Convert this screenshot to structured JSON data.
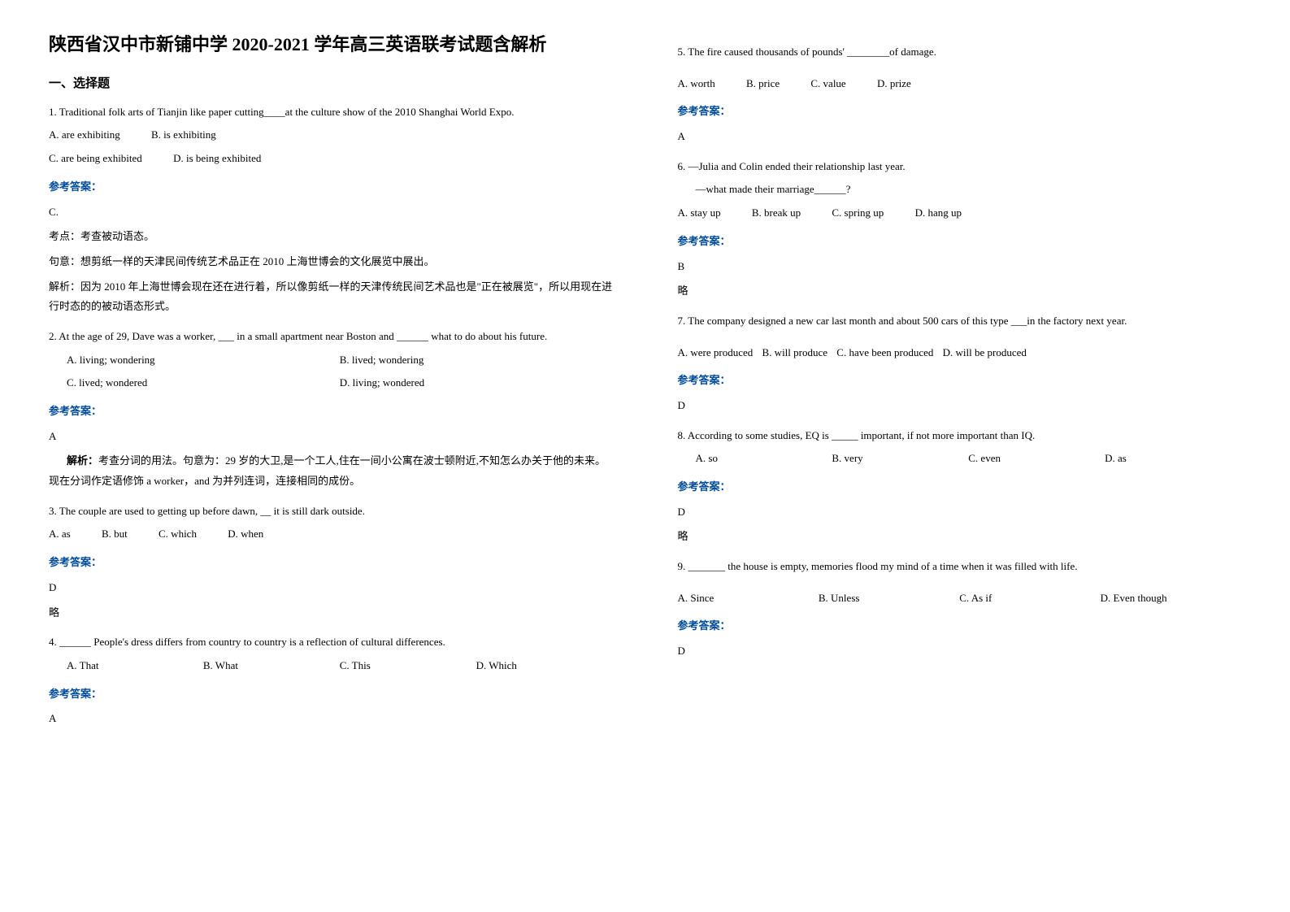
{
  "title": "陕西省汉中市新铺中学 2020-2021 学年高三英语联考试题含解析",
  "section1_header": "一、选择题",
  "answer_label": "参考答案：",
  "q1": {
    "text": "1. Traditional folk arts of Tianjin like paper cutting____at the culture show of the 2010 Shanghai World Expo.",
    "optA": "A. are exhibiting",
    "optB": "B. is exhibiting",
    "optC": "C. are being exhibited",
    "optD": "D. is being exhibited",
    "answer": "C.",
    "point_label": "考点：考查被动语态。",
    "meaning": "句意：想剪纸一样的天津民间传统艺术品正在 2010 上海世博会的文化展览中展出。",
    "analysis": "解析：因为 2010 年上海世博会现在还在进行着，所以像剪纸一样的天津传统民间艺术品也是\"正在被展览\"，所以用现在进行时态的的被动语态形式。"
  },
  "q2": {
    "text": "2. At the age of 29, Dave was a worker, ___ in a small apartment near Boston and ______ what to do about his future.",
    "optA": "A. living; wondering",
    "optB": "B. lived; wondering",
    "optC": "C. lived; wondered",
    "optD": "D. living; wondered",
    "answer": "A",
    "analysis_label": "解析：",
    "analysis": "考查分词的用法。句意为：29 岁的大卫,是一个工人,住在一间小公寓在波士顿附近,不知怎么办关于他的未来。现在分词作定语修饰 a worker，and 为并列连词，连接相同的成份。"
  },
  "q3": {
    "text": "3. The couple are used to getting up before dawn, __ it is still dark outside.",
    "optA": "A. as",
    "optB": "B. but",
    "optC": "C. which",
    "optD": "D. when",
    "answer": "D",
    "note": "略"
  },
  "q4": {
    "text": "4. ______ People's dress differs from country to country is a reflection of cultural differences.",
    "optA": "A. That",
    "optB": "B. What",
    "optC": "C. This",
    "optD": "D. Which",
    "answer": "A"
  },
  "q5": {
    "text": "5. The fire caused thousands of pounds' ________of damage.",
    "optA": "A. worth",
    "optB": "B. price",
    "optC": "C. value",
    "optD": "D. prize",
    "answer": "A"
  },
  "q6": {
    "line1": "6. —Julia and Colin ended their relationship last year.",
    "line2": "—what made their marriage______?",
    "optA": "A. stay up",
    "optB": "B. break up",
    "optC": "C. spring up",
    "optD": "D. hang up",
    "answer": "B",
    "note": "略"
  },
  "q7": {
    "text": "7. The company designed a new car last month and about 500 cars of this type ___in the factory next year.",
    "optA": "A. were produced",
    "optB": "B. will produce",
    "optC": "C. have been produced",
    "optD": "D. will be produced",
    "answer": "D"
  },
  "q8": {
    "text": "8. According to some studies, EQ is _____ important, if not more important than IQ.",
    "optA": "A. so",
    "optB": "B. very",
    "optC": "C. even",
    "optD": "D. as",
    "answer": "D",
    "note": "略"
  },
  "q9": {
    "text": "9. _______ the house is empty, memories flood my mind of a time when it was filled with life.",
    "optA": "A. Since",
    "optB": "B. Unless",
    "optC": "C. As if",
    "optD": "D. Even though",
    "answer": "D"
  }
}
